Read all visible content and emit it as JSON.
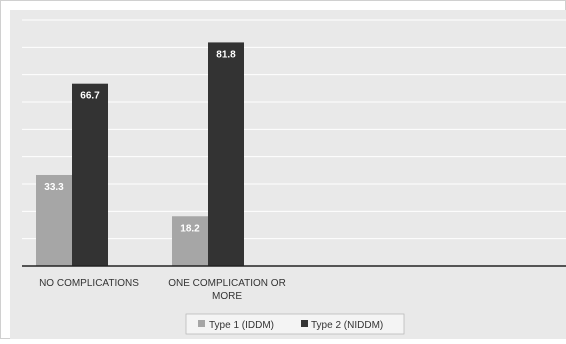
{
  "chart_data": {
    "type": "bar",
    "title": "",
    "xlabel": "",
    "ylabel": "",
    "categories": [
      "NO COMPLICATIONS",
      "ONE COMPLICATION OR MORE"
    ],
    "category_lines": [
      [
        "NO COMPLICATIONS"
      ],
      [
        "ONE COMPLICATION OR",
        "MORE"
      ]
    ],
    "series": [
      {
        "name": "Type 1 (IDDM)",
        "values": [
          33.3,
          18.2
        ],
        "color": "#a6a6a6"
      },
      {
        "name": "Type 2 (NIDDM)",
        "values": [
          66.7,
          81.8
        ],
        "color": "#333333"
      }
    ],
    "data_labels": [
      [
        "33.3",
        "18.2"
      ],
      [
        "66.7",
        "81.8"
      ]
    ],
    "ylim": [
      0,
      90
    ],
    "gridlines": true,
    "grid_step": 10,
    "legend_position": "bottom-center",
    "data_label_color": "#ffffff",
    "background_color": "#e9e9e9",
    "gridline_color": "#ffffff",
    "axis_color": "#222222"
  }
}
